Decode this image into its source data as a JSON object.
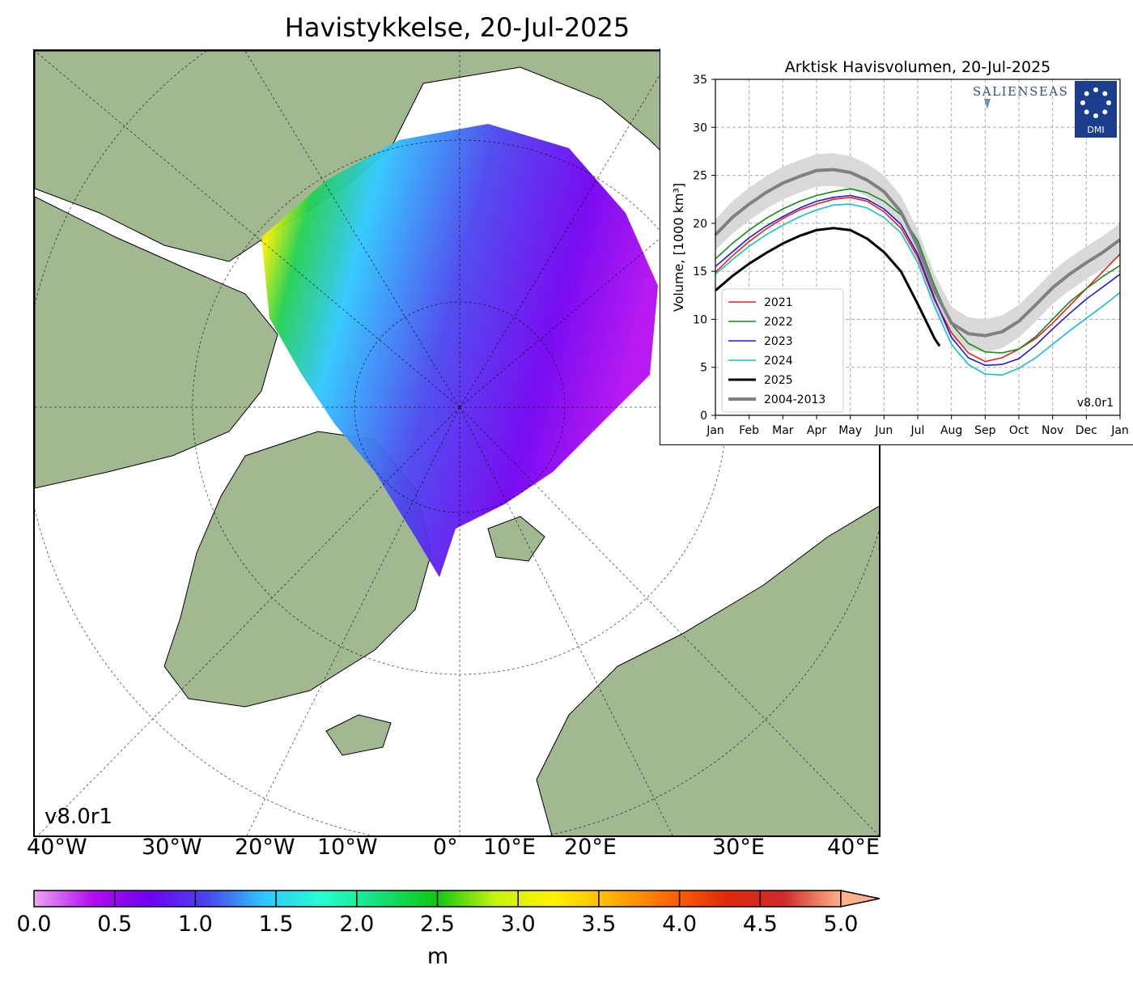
{
  "map": {
    "title": "Havistykkelse, 20-Jul-2025",
    "version": "v8.0r1",
    "longitude_labels": [
      "40°W",
      "30°W",
      "20°W",
      "10°W",
      "0°",
      "10°E",
      "20°E",
      "30°E",
      "40°E"
    ],
    "colors": {
      "land": "#a1b890",
      "ocean": "#ffffff",
      "rivers": "#7fa7e0"
    }
  },
  "colorbar": {
    "ticks": [
      "0.0",
      "0.5",
      "1.0",
      "1.5",
      "2.0",
      "2.5",
      "3.0",
      "3.5",
      "4.0",
      "4.5",
      "5.0"
    ],
    "unit": "m",
    "range": [
      0,
      5
    ],
    "extend": "max",
    "stops": [
      "#eba6f5",
      "#b40ef0",
      "#7100f0",
      "#4a45ee",
      "#2ec7ff",
      "#27ffcf",
      "#14e07a",
      "#0fc80f",
      "#c6f40c",
      "#fff200",
      "#ffb300",
      "#ff6a00",
      "#e02a0b",
      "#cf2a2a",
      "#ffb28a"
    ]
  },
  "chart_data": {
    "type": "line",
    "title": "Arktisk Havisvolumen, 20-Jul-2025",
    "ylabel": "Volume, [1000 km³]",
    "xlabel": "",
    "x_ticks": [
      "Jan",
      "Feb",
      "Mar",
      "Apr",
      "May",
      "Jun",
      "Jul",
      "Aug",
      "Sep",
      "Oct",
      "Nov",
      "Dec",
      "Jan"
    ],
    "y_ticks": [
      "0",
      "5",
      "10",
      "15",
      "20",
      "25",
      "30",
      "35"
    ],
    "ylim": [
      0,
      35
    ],
    "xlim": [
      0,
      12
    ],
    "grid": true,
    "legend_position": "lower-left",
    "version": "v8.0r1",
    "logos": {
      "salienseas": "SALIENSEAS",
      "dmi": "DMI"
    },
    "series": [
      {
        "name": "2021",
        "color": "#e8201c",
        "x": [
          0,
          0.5,
          1,
          1.5,
          2,
          2.5,
          3,
          3.5,
          4,
          4.5,
          5,
          5.5,
          6,
          6.5,
          7,
          7.5,
          8,
          8.5,
          9,
          9.5,
          10,
          10.5,
          11,
          11.5,
          12
        ],
        "y": [
          14.9,
          16.6,
          18.1,
          19.4,
          20.5,
          21.4,
          22.0,
          22.5,
          22.7,
          22.3,
          21.2,
          19.5,
          16.5,
          12.0,
          8.6,
          6.5,
          5.6,
          6.0,
          6.9,
          8.0,
          9.6,
          11.4,
          13.2,
          15.0,
          16.8
        ]
      },
      {
        "name": "2022",
        "color": "#178a17",
        "x": [
          0,
          0.5,
          1,
          1.5,
          2,
          2.5,
          3,
          3.5,
          4,
          4.5,
          5,
          5.5,
          6,
          6.5,
          7,
          7.5,
          8,
          8.5,
          9,
          9.5,
          10,
          10.5,
          11,
          11.5,
          12
        ],
        "y": [
          16.3,
          17.9,
          19.3,
          20.5,
          21.5,
          22.3,
          22.9,
          23.3,
          23.6,
          23.2,
          22.3,
          20.9,
          18.2,
          13.5,
          9.5,
          7.5,
          6.6,
          6.5,
          6.9,
          8.2,
          10.0,
          11.8,
          13.2,
          14.5,
          15.6
        ]
      },
      {
        "name": "2023",
        "color": "#1c1cd6",
        "x": [
          0,
          0.5,
          1,
          1.5,
          2,
          2.5,
          3,
          3.5,
          4,
          4.5,
          5,
          5.5,
          6,
          6.5,
          7,
          7.5,
          8,
          8.5,
          9,
          9.5,
          10,
          10.5,
          11,
          11.5,
          12
        ],
        "y": [
          15.5,
          17.0,
          18.5,
          19.7,
          20.7,
          21.6,
          22.3,
          22.7,
          22.9,
          22.5,
          21.5,
          19.9,
          16.8,
          12.2,
          8.1,
          6.0,
          5.2,
          5.3,
          5.9,
          7.3,
          9.0,
          10.6,
          12.1,
          13.4,
          14.7
        ]
      },
      {
        "name": "2024",
        "color": "#17becf",
        "x": [
          0,
          0.5,
          1,
          1.5,
          2,
          2.5,
          3,
          3.5,
          4,
          4.5,
          5,
          5.5,
          6,
          6.5,
          7,
          7.5,
          8,
          8.5,
          9,
          9.5,
          10,
          10.5,
          11,
          11.5,
          12
        ],
        "y": [
          14.7,
          16.2,
          17.6,
          18.8,
          19.8,
          20.7,
          21.4,
          21.9,
          22.0,
          21.6,
          20.6,
          19.0,
          15.9,
          11.3,
          7.4,
          5.3,
          4.3,
          4.2,
          4.9,
          6.0,
          7.4,
          8.8,
          10.1,
          11.4,
          12.8
        ]
      },
      {
        "name": "2025",
        "color": "#000000",
        "x": [
          0,
          0.5,
          1,
          1.5,
          2,
          2.5,
          3,
          3.5,
          4,
          4.5,
          5,
          5.5,
          6,
          6.5,
          6.65
        ],
        "y": [
          13.0,
          14.5,
          15.8,
          16.9,
          17.9,
          18.7,
          19.3,
          19.5,
          19.3,
          18.4,
          17.0,
          15.0,
          11.6,
          8.0,
          7.2
        ]
      },
      {
        "name": "2004-2013",
        "color": "#808080",
        "x": [
          0,
          0.5,
          1,
          1.5,
          2,
          2.5,
          3,
          3.5,
          4,
          4.5,
          5,
          5.5,
          6,
          6.5,
          7,
          7.5,
          8,
          8.5,
          9,
          9.5,
          10,
          10.5,
          11,
          11.5,
          12
        ],
        "y": [
          18.8,
          20.6,
          22.0,
          23.2,
          24.2,
          24.9,
          25.5,
          25.6,
          25.3,
          24.5,
          23.3,
          21.2,
          17.6,
          13.0,
          9.6,
          8.5,
          8.3,
          8.7,
          9.8,
          11.5,
          13.3,
          14.7,
          15.9,
          17.0,
          18.3
        ],
        "band_low": [
          17.2,
          18.9,
          20.3,
          21.5,
          22.5,
          23.2,
          23.8,
          23.9,
          23.6,
          22.8,
          21.6,
          19.5,
          15.9,
          11.3,
          7.9,
          6.8,
          6.6,
          7.0,
          8.1,
          9.8,
          11.6,
          13.0,
          14.2,
          15.3,
          16.6
        ],
        "band_high": [
          20.4,
          22.3,
          23.7,
          24.9,
          25.9,
          26.6,
          27.2,
          27.3,
          27.0,
          26.2,
          25.0,
          22.9,
          19.3,
          14.7,
          11.3,
          10.2,
          10.0,
          10.4,
          11.5,
          13.2,
          15.0,
          16.4,
          17.6,
          18.7,
          20.0
        ]
      }
    ]
  }
}
